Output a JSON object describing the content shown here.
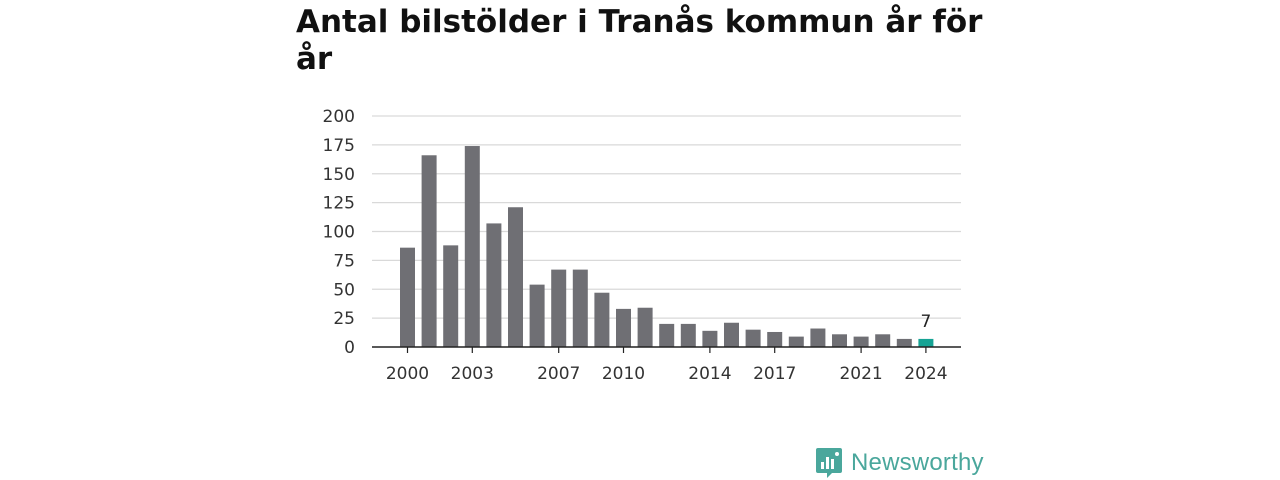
{
  "chart_data": {
    "type": "bar",
    "title": "Antal bilstölder i Tranås kommun år för år",
    "xlabel": "",
    "ylabel": "",
    "ylim": [
      0,
      200
    ],
    "y_ticks": [
      0,
      25,
      50,
      75,
      100,
      125,
      150,
      175,
      200
    ],
    "x_tick_labels": [
      "2000",
      "2003",
      "2007",
      "2010",
      "2014",
      "2017",
      "2021",
      "2024"
    ],
    "categories": [
      "2000",
      "2001",
      "2002",
      "2003",
      "2004",
      "2005",
      "2006",
      "2007",
      "2008",
      "2009",
      "2010",
      "2011",
      "2012",
      "2013",
      "2014",
      "2015",
      "2016",
      "2017",
      "2018",
      "2019",
      "2020",
      "2021",
      "2022",
      "2023",
      "2024"
    ],
    "values": [
      86,
      166,
      88,
      174,
      107,
      121,
      54,
      67,
      67,
      47,
      33,
      34,
      20,
      20,
      14,
      21,
      15,
      13,
      9,
      16,
      11,
      9,
      11,
      7,
      7
    ],
    "highlight": {
      "category": "2024",
      "label": "7"
    },
    "grid": true,
    "colors": {
      "bar": "#6f6f74",
      "highlight": "#16a394",
      "grid": "#d9d9d9",
      "axis": "#222222"
    }
  },
  "brand": {
    "name": "Newsworthy",
    "icon": "newsworthy-logo-icon",
    "color": "#4aa79c"
  }
}
